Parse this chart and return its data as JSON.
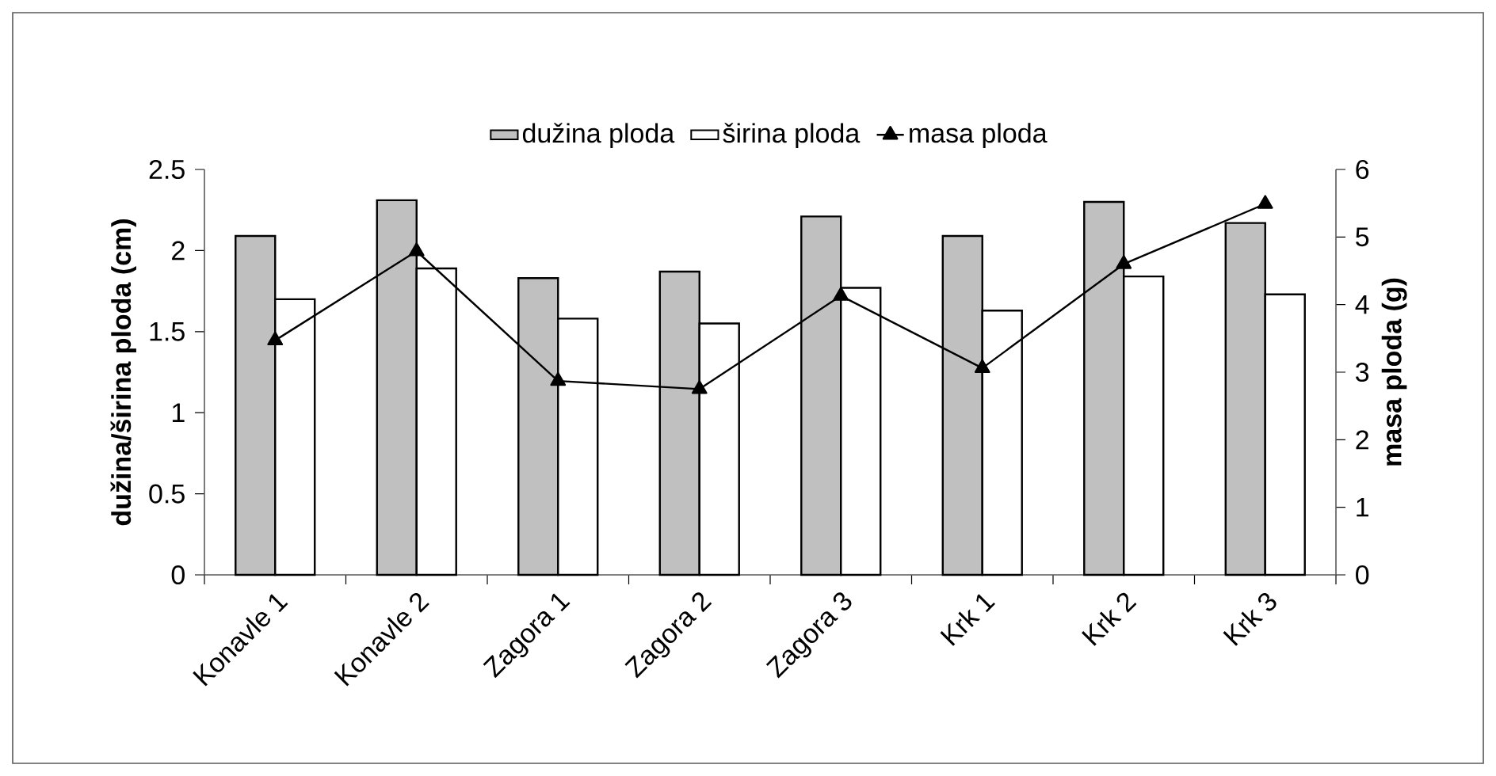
{
  "chart_data": {
    "type": "bar",
    "categories": [
      "Konavle 1",
      "Konavle 2",
      "Zagora 1",
      "Zagora 2",
      "Zagora 3",
      "Krk 1",
      "Krk 2",
      "Krk 3"
    ],
    "ylabel": "dužina/širina ploda (cm)",
    "y2label": "masa ploda (g)",
    "ylim": [
      0,
      2.5
    ],
    "yticks": [
      0,
      0.5,
      1,
      1.5,
      2,
      2.5
    ],
    "y2lim": [
      0,
      6
    ],
    "y2ticks": [
      0,
      1,
      2,
      3,
      4,
      5,
      6
    ],
    "legend": "top",
    "grid": false,
    "series": [
      {
        "name": "dužina ploda",
        "color": "#c0c0c0",
        "values": [
          2.09,
          2.31,
          1.83,
          1.87,
          2.21,
          2.09,
          2.3,
          2.17
        ]
      },
      {
        "name": "širina ploda",
        "color": "#ffffff",
        "values": [
          1.7,
          1.89,
          1.58,
          1.55,
          1.77,
          1.63,
          1.84,
          1.73
        ]
      },
      {
        "name": "masa ploda",
        "type": "line",
        "axis": "y2",
        "color": "#000000",
        "marker": "triangle",
        "values": [
          3.47,
          4.79,
          2.87,
          2.75,
          4.13,
          3.06,
          4.6,
          5.49
        ]
      }
    ]
  }
}
